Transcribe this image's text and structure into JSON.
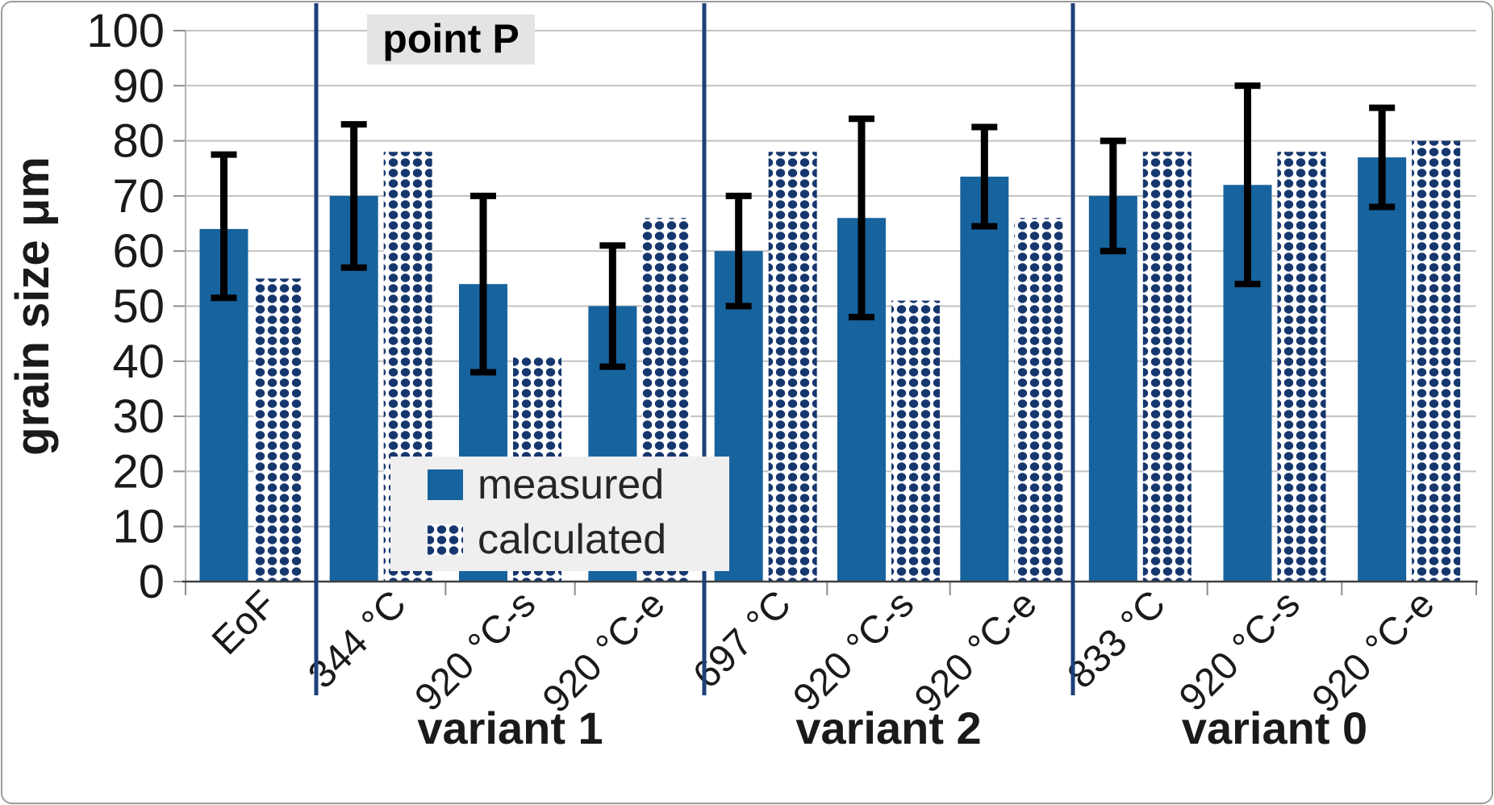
{
  "chart_data": {
    "type": "bar",
    "annotation": "point P",
    "ylabel": "grain size μm",
    "ylim": [
      0,
      100
    ],
    "yticks": [
      0,
      10,
      20,
      30,
      40,
      50,
      60,
      70,
      80,
      90,
      100
    ],
    "grid": true,
    "categories": [
      "EoF",
      "344 °C",
      "920 °C-s",
      "920 °C-e",
      "697 °C",
      "920 °C-s",
      "920 °C-e",
      "833 °C",
      "920 °C-s",
      "920 °C-e"
    ],
    "groups": [
      {
        "label": "",
        "count": 1
      },
      {
        "label": "variant 1",
        "count": 3
      },
      {
        "label": "variant 2",
        "count": 3
      },
      {
        "label": "variant 0",
        "count": 3
      }
    ],
    "series": [
      {
        "name": "measured",
        "style": "solid",
        "values": [
          64,
          70,
          54,
          50,
          60,
          66,
          73.5,
          70,
          72,
          77
        ],
        "error_low": [
          51.5,
          57,
          38,
          39,
          50,
          48,
          64.5,
          60,
          54,
          68
        ],
        "error_high": [
          77.5,
          83,
          70,
          61,
          70,
          84,
          82.5,
          80,
          90,
          86
        ]
      },
      {
        "name": "calculated",
        "style": "dotted",
        "values": [
          55,
          78,
          41,
          66,
          78,
          51,
          66,
          78,
          78,
          80
        ]
      }
    ],
    "legend": {
      "position": "inside-bottom-left",
      "items": [
        "measured",
        "calculated"
      ]
    },
    "colors": {
      "measured_fill": "#17639e",
      "calculated_dot": "#16376e",
      "calculated_bg": "#ffffff",
      "divider": "#1e4179",
      "gridline": "#c2c2c2",
      "axis_line": "#404040",
      "tick": "#8c8c8c",
      "error_bar": "#000000",
      "text": "#1a1a1a",
      "legend_bg": "#efefef",
      "annotation_bg": "#e4e4e4"
    }
  }
}
